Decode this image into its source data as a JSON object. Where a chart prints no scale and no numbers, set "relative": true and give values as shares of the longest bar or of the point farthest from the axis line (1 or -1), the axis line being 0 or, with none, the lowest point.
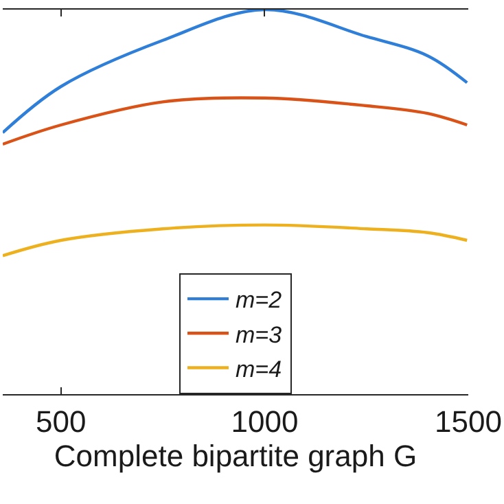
{
  "chart_data": {
    "type": "line",
    "xlabel": "Complete bipartite graph G",
    "relative": true,
    "x": [
      357,
      500,
      750,
      1000,
      1250,
      1400,
      1497
    ],
    "xlim": [
      357,
      1500
    ],
    "xticks": [
      500,
      1000,
      1500
    ],
    "series": [
      {
        "name": "m=2",
        "color": "#2f7fd8",
        "values": [
          0.68,
          0.8,
          0.92,
          1.0,
          0.93,
          0.88,
          0.81
        ]
      },
      {
        "name": "m=3",
        "color": "#d95319",
        "values": [
          0.65,
          0.7,
          0.76,
          0.77,
          0.75,
          0.73,
          0.7
        ]
      },
      {
        "name": "m=4",
        "color": "#edb120",
        "values": [
          0.36,
          0.4,
          0.43,
          0.44,
          0.43,
          0.42,
          0.4
        ]
      }
    ],
    "legend": "bottom",
    "marker": "none",
    "line_style": "solid"
  }
}
